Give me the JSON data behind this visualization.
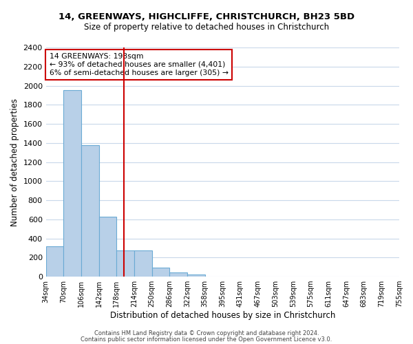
{
  "title1": "14, GREENWAYS, HIGHCLIFFE, CHRISTCHURCH, BH23 5BD",
  "title2": "Size of property relative to detached houses in Christchurch",
  "xlabel": "Distribution of detached houses by size in Christchurch",
  "ylabel": "Number of detached properties",
  "bar_heights": [
    315,
    1950,
    1380,
    630,
    275,
    275,
    95,
    45,
    25,
    0,
    0,
    0,
    0,
    0,
    0,
    0,
    0,
    0,
    0,
    0
  ],
  "tick_labels": [
    "34sqm",
    "70sqm",
    "106sqm",
    "142sqm",
    "178sqm",
    "214sqm",
    "250sqm",
    "286sqm",
    "322sqm",
    "358sqm",
    "395sqm",
    "431sqm",
    "467sqm",
    "503sqm",
    "539sqm",
    "575sqm",
    "611sqm",
    "647sqm",
    "683sqm",
    "719sqm",
    "755sqm"
  ],
  "bar_color": "#b8d0e8",
  "bar_edge_color": "#6aaad4",
  "ylim": [
    0,
    2400
  ],
  "yticks": [
    0,
    200,
    400,
    600,
    800,
    1000,
    1200,
    1400,
    1600,
    1800,
    2000,
    2200,
    2400
  ],
  "vline_x": 4.72,
  "vline_color": "#cc0000",
  "annotation_title": "14 GREENWAYS: 193sqm",
  "annotation_line1": "← 93% of detached houses are smaller (4,401)",
  "annotation_line2": "6% of semi-detached houses are larger (305) →",
  "annotation_box_color": "#ffffff",
  "annotation_box_edge": "#cc0000",
  "footer1": "Contains HM Land Registry data © Crown copyright and database right 2024.",
  "footer2": "Contains public sector information licensed under the Open Government Licence v3.0.",
  "background_color": "#ffffff",
  "grid_color": "#c8d8ea"
}
